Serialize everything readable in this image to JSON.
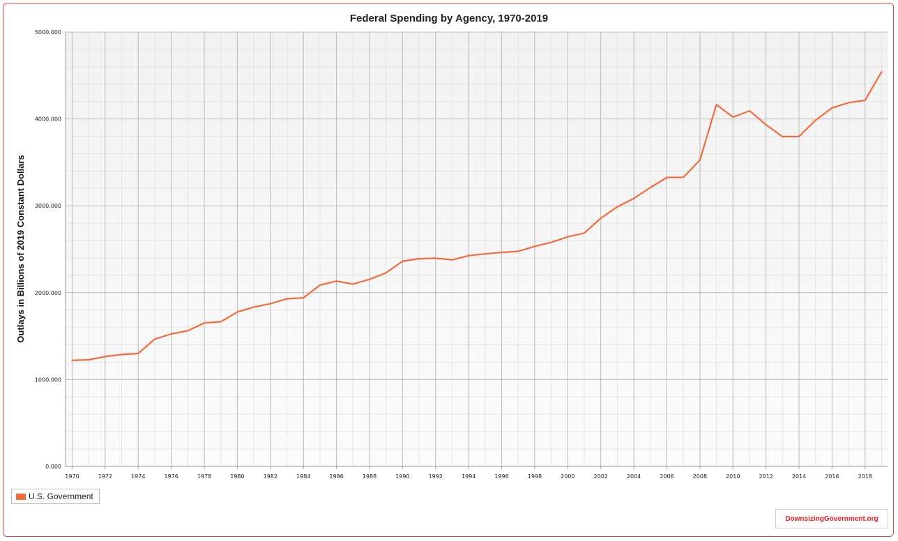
{
  "chart_data": {
    "type": "line",
    "title": "Federal Spending by Agency, 1970-2019",
    "xlabel": "",
    "ylabel": "Outlays in Billions of 2019 Constant Dollars",
    "xlim": [
      1969.6,
      2019.4
    ],
    "ylim": [
      0,
      5000
    ],
    "yticks": [
      0,
      1000,
      2000,
      3000,
      4000,
      5000
    ],
    "ytick_labels": [
      "0.000",
      "1000.000",
      "2000.000",
      "3000.000",
      "4000.000",
      "5000.000"
    ],
    "xtick_labels": [
      "1970",
      "1972",
      "1974",
      "1976",
      "1978",
      "1980",
      "1982",
      "1984",
      "1986",
      "1988",
      "1990",
      "1992",
      "1994",
      "1996",
      "1998",
      "2000",
      "2002",
      "2004",
      "2006",
      "2008",
      "2010",
      "2012",
      "2014",
      "2016",
      "2018"
    ],
    "grid": true,
    "legend_position": "bottom-left",
    "series": [
      {
        "name": "U.S. Government",
        "color": "#f26b3a",
        "x": [
          1970,
          1971,
          1972,
          1973,
          1974,
          1975,
          1976,
          1977,
          1978,
          1979,
          1980,
          1981,
          1982,
          1983,
          1984,
          1985,
          1986,
          1987,
          1988,
          1989,
          1990,
          1991,
          1992,
          1993,
          1994,
          1995,
          1996,
          1997,
          1998,
          1999,
          2000,
          2001,
          2002,
          2003,
          2004,
          2005,
          2006,
          2007,
          2008,
          2009,
          2010,
          2011,
          2012,
          2013,
          2014,
          2015,
          2016,
          2017,
          2018,
          2019
        ],
        "values": [
          1221,
          1228,
          1265,
          1288,
          1300,
          1466,
          1525,
          1562,
          1652,
          1665,
          1777,
          1835,
          1872,
          1929,
          1941,
          2087,
          2133,
          2099,
          2153,
          2228,
          2363,
          2391,
          2397,
          2377,
          2426,
          2446,
          2464,
          2476,
          2533,
          2579,
          2643,
          2685,
          2857,
          2988,
          3085,
          3210,
          3327,
          3328,
          3527,
          4165,
          4020,
          4093,
          3933,
          3796,
          3798,
          3985,
          4127,
          4187,
          4215,
          4542
        ]
      }
    ]
  },
  "branding": {
    "watermark": "DownsizingGovernment.org"
  }
}
